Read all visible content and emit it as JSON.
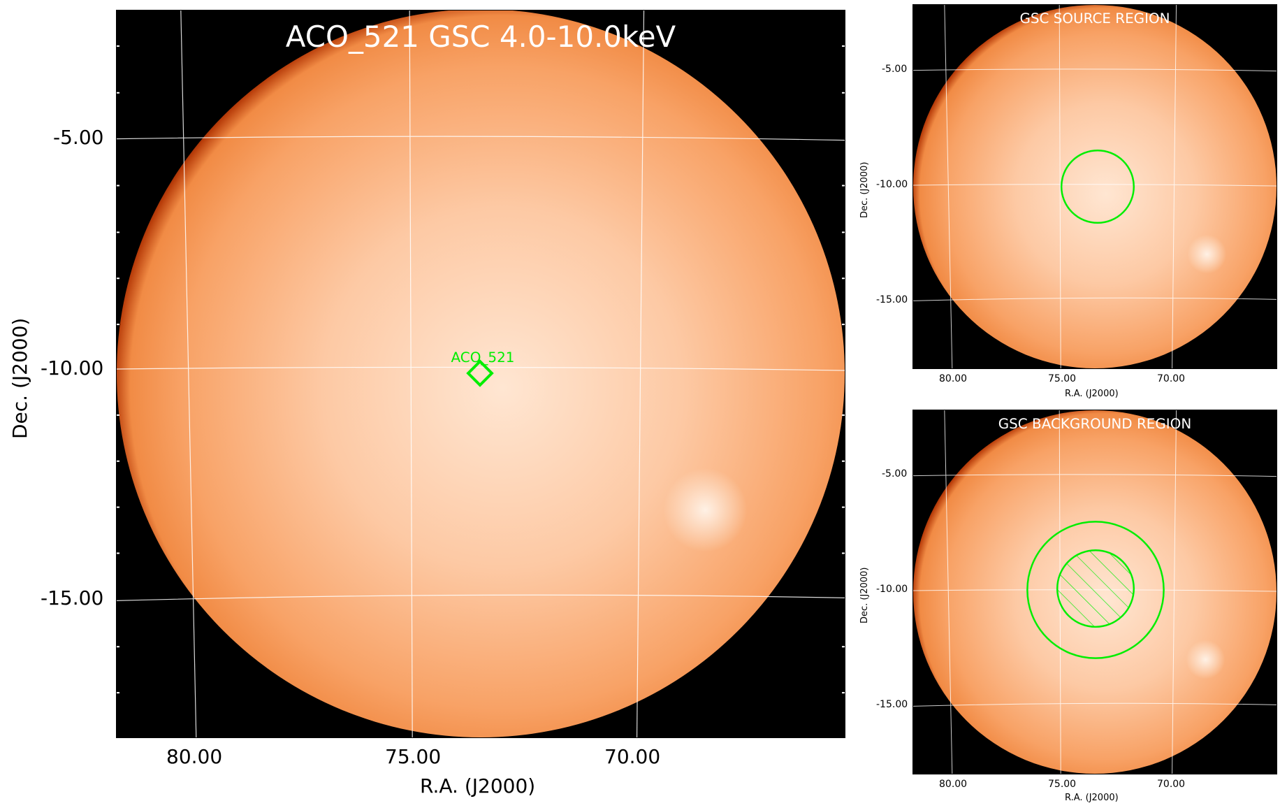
{
  "main": {
    "title": "ACO_521 GSC 4.0-10.0keV",
    "source_label": "ACO_521",
    "xlabel": "R.A. (J2000)",
    "ylabel": "Dec. (J2000)",
    "xticks": [
      "80.00",
      "75.00",
      "70.00"
    ],
    "yticks": [
      "-5.00",
      "-10.00",
      "-15.00"
    ]
  },
  "source_panel": {
    "title": "GSC SOURCE REGION",
    "xlabel": "R.A. (J2000)",
    "ylabel": "Dec. (J2000)",
    "xticks": [
      "80.00",
      "75.00",
      "70.00"
    ],
    "yticks": [
      "-5.00",
      "-10.00",
      "-15.00"
    ]
  },
  "background_panel": {
    "title": "GSC BACKGROUND REGION",
    "xlabel": "R.A. (J2000)",
    "ylabel": "Dec. (J2000)",
    "xticks": [
      "80.00",
      "75.00",
      "70.00"
    ],
    "yticks": [
      "-5.00",
      "-10.00",
      "-15.00"
    ]
  },
  "colors": {
    "disk_center": "#ffe9d8",
    "disk_mid": "#f9a46a",
    "disk_edge": "#e06a1a",
    "rim": "#7a1a00",
    "region": "#00ee00",
    "grid": "#ffffff"
  }
}
